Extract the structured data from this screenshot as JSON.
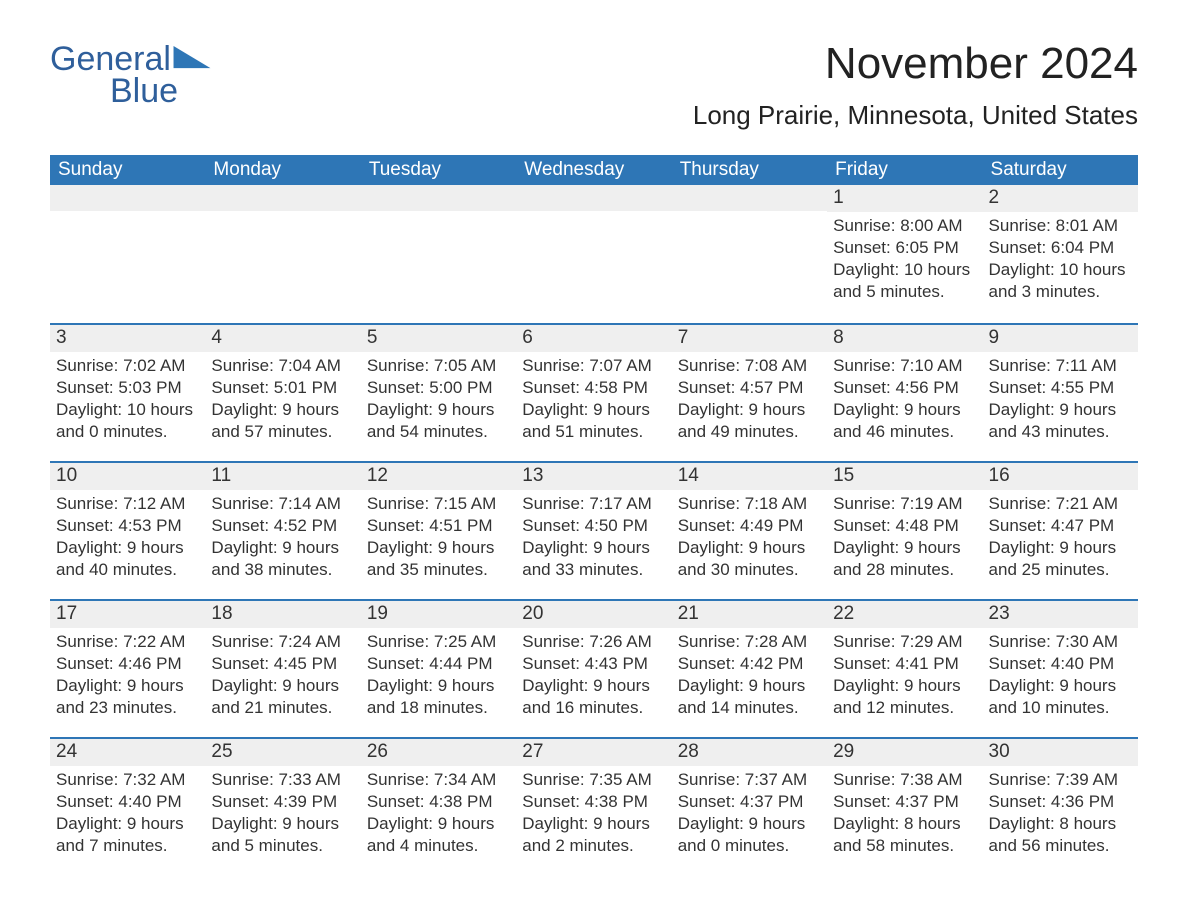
{
  "brand": {
    "word1": "General",
    "word2": "Blue",
    "text_color": "#2f5f9b",
    "flag_color": "#2e76b6"
  },
  "header": {
    "month_title": "November 2024",
    "location": "Long Prairie, Minnesota, United States"
  },
  "colors": {
    "header_bg": "#2e76b6",
    "header_text": "#ffffff",
    "daynum_bg": "#efefef",
    "rule": "#2e76b6",
    "body_text": "#333333",
    "page_bg": "#ffffff"
  },
  "day_names": [
    "Sunday",
    "Monday",
    "Tuesday",
    "Wednesday",
    "Thursday",
    "Friday",
    "Saturday"
  ],
  "weeks": [
    [
      {
        "blank": true
      },
      {
        "blank": true
      },
      {
        "blank": true
      },
      {
        "blank": true
      },
      {
        "blank": true
      },
      {
        "day": "1",
        "sunrise": "Sunrise: 8:00 AM",
        "sunset": "Sunset: 6:05 PM",
        "daylight1": "Daylight: 10 hours",
        "daylight2": "and 5 minutes."
      },
      {
        "day": "2",
        "sunrise": "Sunrise: 8:01 AM",
        "sunset": "Sunset: 6:04 PM",
        "daylight1": "Daylight: 10 hours",
        "daylight2": "and 3 minutes."
      }
    ],
    [
      {
        "day": "3",
        "sunrise": "Sunrise: 7:02 AM",
        "sunset": "Sunset: 5:03 PM",
        "daylight1": "Daylight: 10 hours",
        "daylight2": "and 0 minutes."
      },
      {
        "day": "4",
        "sunrise": "Sunrise: 7:04 AM",
        "sunset": "Sunset: 5:01 PM",
        "daylight1": "Daylight: 9 hours",
        "daylight2": "and 57 minutes."
      },
      {
        "day": "5",
        "sunrise": "Sunrise: 7:05 AM",
        "sunset": "Sunset: 5:00 PM",
        "daylight1": "Daylight: 9 hours",
        "daylight2": "and 54 minutes."
      },
      {
        "day": "6",
        "sunrise": "Sunrise: 7:07 AM",
        "sunset": "Sunset: 4:58 PM",
        "daylight1": "Daylight: 9 hours",
        "daylight2": "and 51 minutes."
      },
      {
        "day": "7",
        "sunrise": "Sunrise: 7:08 AM",
        "sunset": "Sunset: 4:57 PM",
        "daylight1": "Daylight: 9 hours",
        "daylight2": "and 49 minutes."
      },
      {
        "day": "8",
        "sunrise": "Sunrise: 7:10 AM",
        "sunset": "Sunset: 4:56 PM",
        "daylight1": "Daylight: 9 hours",
        "daylight2": "and 46 minutes."
      },
      {
        "day": "9",
        "sunrise": "Sunrise: 7:11 AM",
        "sunset": "Sunset: 4:55 PM",
        "daylight1": "Daylight: 9 hours",
        "daylight2": "and 43 minutes."
      }
    ],
    [
      {
        "day": "10",
        "sunrise": "Sunrise: 7:12 AM",
        "sunset": "Sunset: 4:53 PM",
        "daylight1": "Daylight: 9 hours",
        "daylight2": "and 40 minutes."
      },
      {
        "day": "11",
        "sunrise": "Sunrise: 7:14 AM",
        "sunset": "Sunset: 4:52 PM",
        "daylight1": "Daylight: 9 hours",
        "daylight2": "and 38 minutes."
      },
      {
        "day": "12",
        "sunrise": "Sunrise: 7:15 AM",
        "sunset": "Sunset: 4:51 PM",
        "daylight1": "Daylight: 9 hours",
        "daylight2": "and 35 minutes."
      },
      {
        "day": "13",
        "sunrise": "Sunrise: 7:17 AM",
        "sunset": "Sunset: 4:50 PM",
        "daylight1": "Daylight: 9 hours",
        "daylight2": "and 33 minutes."
      },
      {
        "day": "14",
        "sunrise": "Sunrise: 7:18 AM",
        "sunset": "Sunset: 4:49 PM",
        "daylight1": "Daylight: 9 hours",
        "daylight2": "and 30 minutes."
      },
      {
        "day": "15",
        "sunrise": "Sunrise: 7:19 AM",
        "sunset": "Sunset: 4:48 PM",
        "daylight1": "Daylight: 9 hours",
        "daylight2": "and 28 minutes."
      },
      {
        "day": "16",
        "sunrise": "Sunrise: 7:21 AM",
        "sunset": "Sunset: 4:47 PM",
        "daylight1": "Daylight: 9 hours",
        "daylight2": "and 25 minutes."
      }
    ],
    [
      {
        "day": "17",
        "sunrise": "Sunrise: 7:22 AM",
        "sunset": "Sunset: 4:46 PM",
        "daylight1": "Daylight: 9 hours",
        "daylight2": "and 23 minutes."
      },
      {
        "day": "18",
        "sunrise": "Sunrise: 7:24 AM",
        "sunset": "Sunset: 4:45 PM",
        "daylight1": "Daylight: 9 hours",
        "daylight2": "and 21 minutes."
      },
      {
        "day": "19",
        "sunrise": "Sunrise: 7:25 AM",
        "sunset": "Sunset: 4:44 PM",
        "daylight1": "Daylight: 9 hours",
        "daylight2": "and 18 minutes."
      },
      {
        "day": "20",
        "sunrise": "Sunrise: 7:26 AM",
        "sunset": "Sunset: 4:43 PM",
        "daylight1": "Daylight: 9 hours",
        "daylight2": "and 16 minutes."
      },
      {
        "day": "21",
        "sunrise": "Sunrise: 7:28 AM",
        "sunset": "Sunset: 4:42 PM",
        "daylight1": "Daylight: 9 hours",
        "daylight2": "and 14 minutes."
      },
      {
        "day": "22",
        "sunrise": "Sunrise: 7:29 AM",
        "sunset": "Sunset: 4:41 PM",
        "daylight1": "Daylight: 9 hours",
        "daylight2": "and 12 minutes."
      },
      {
        "day": "23",
        "sunrise": "Sunrise: 7:30 AM",
        "sunset": "Sunset: 4:40 PM",
        "daylight1": "Daylight: 9 hours",
        "daylight2": "and 10 minutes."
      }
    ],
    [
      {
        "day": "24",
        "sunrise": "Sunrise: 7:32 AM",
        "sunset": "Sunset: 4:40 PM",
        "daylight1": "Daylight: 9 hours",
        "daylight2": "and 7 minutes."
      },
      {
        "day": "25",
        "sunrise": "Sunrise: 7:33 AM",
        "sunset": "Sunset: 4:39 PM",
        "daylight1": "Daylight: 9 hours",
        "daylight2": "and 5 minutes."
      },
      {
        "day": "26",
        "sunrise": "Sunrise: 7:34 AM",
        "sunset": "Sunset: 4:38 PM",
        "daylight1": "Daylight: 9 hours",
        "daylight2": "and 4 minutes."
      },
      {
        "day": "27",
        "sunrise": "Sunrise: 7:35 AM",
        "sunset": "Sunset: 4:38 PM",
        "daylight1": "Daylight: 9 hours",
        "daylight2": "and 2 minutes."
      },
      {
        "day": "28",
        "sunrise": "Sunrise: 7:37 AM",
        "sunset": "Sunset: 4:37 PM",
        "daylight1": "Daylight: 9 hours",
        "daylight2": "and 0 minutes."
      },
      {
        "day": "29",
        "sunrise": "Sunrise: 7:38 AM",
        "sunset": "Sunset: 4:37 PM",
        "daylight1": "Daylight: 8 hours",
        "daylight2": "and 58 minutes."
      },
      {
        "day": "30",
        "sunrise": "Sunrise: 7:39 AM",
        "sunset": "Sunset: 4:36 PM",
        "daylight1": "Daylight: 8 hours",
        "daylight2": "and 56 minutes."
      }
    ]
  ]
}
